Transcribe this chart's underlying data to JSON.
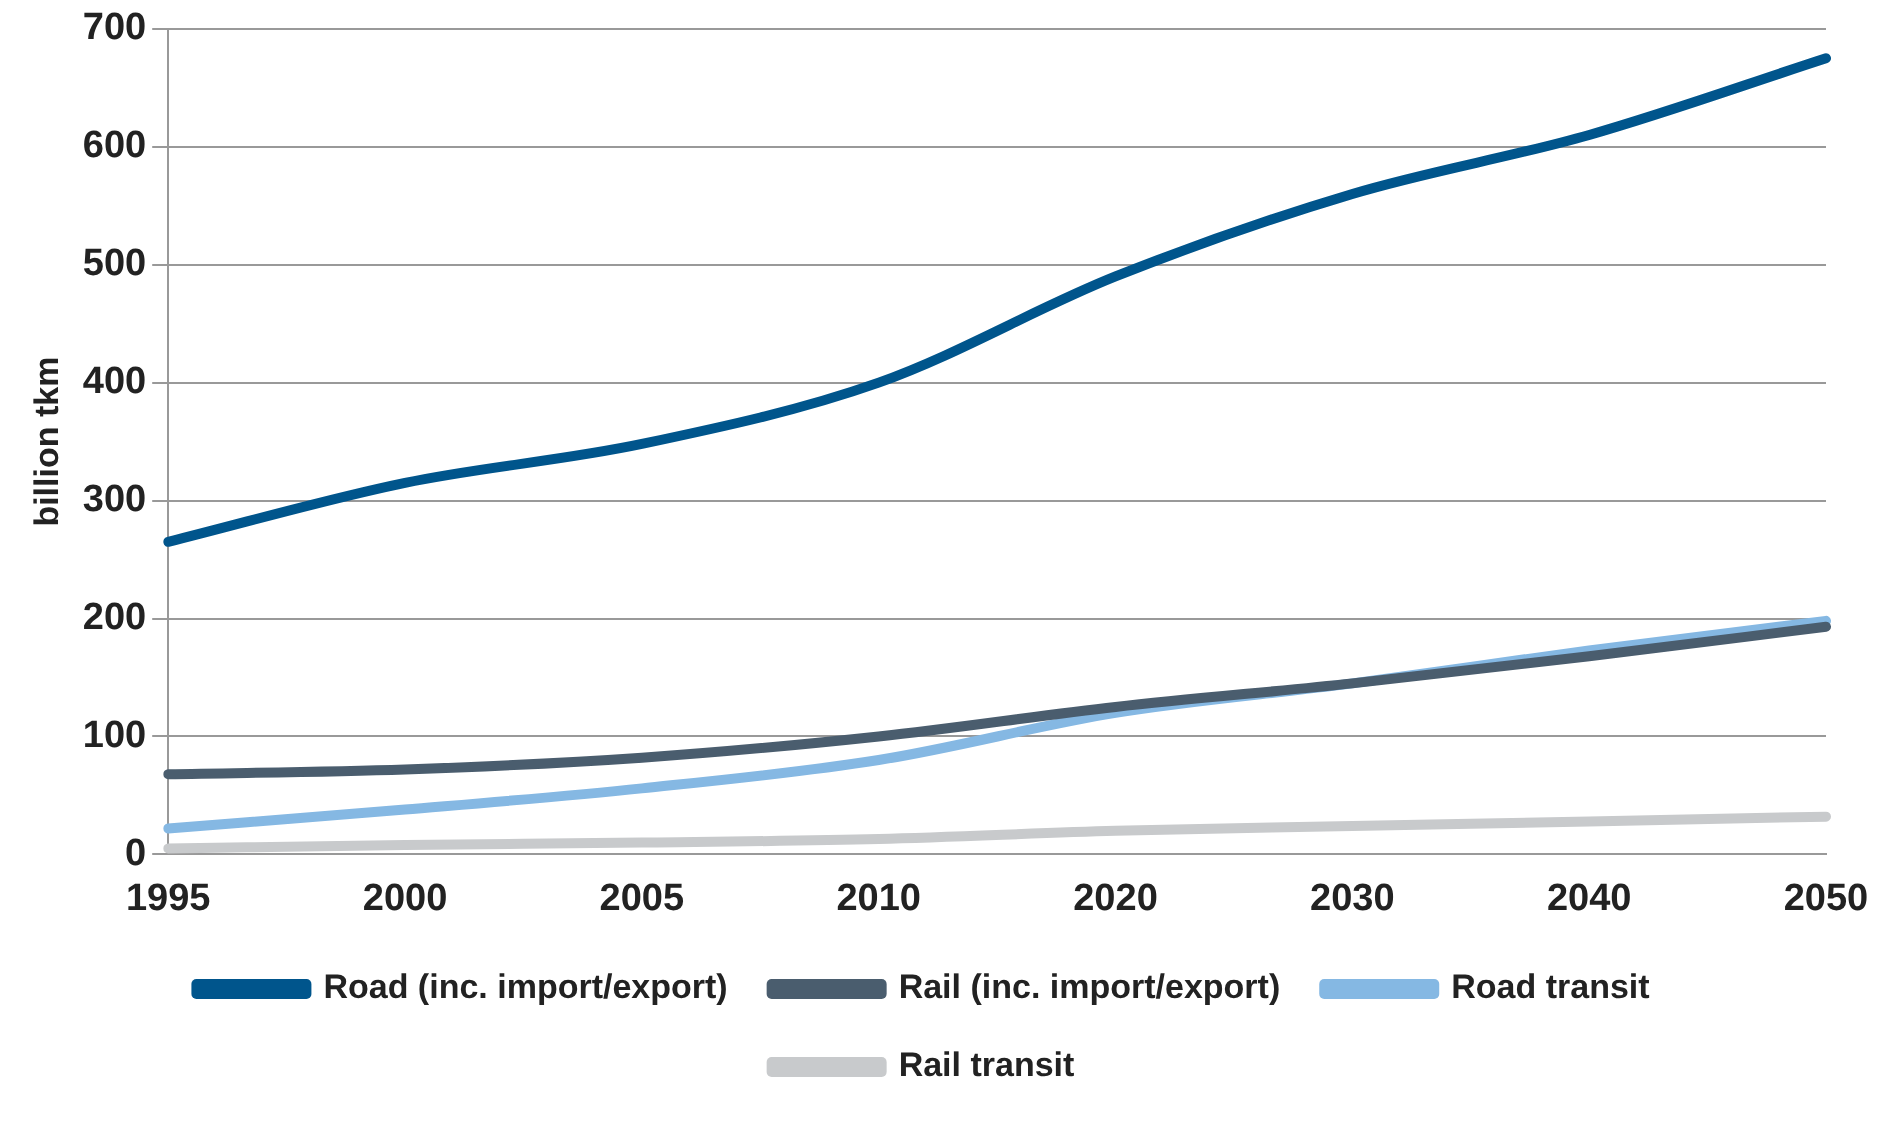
{
  "chart_data": {
    "type": "line",
    "ylabel": "billion tkm",
    "categories": [
      "1995",
      "2000",
      "2005",
      "2010",
      "2020",
      "2030",
      "2040",
      "2050"
    ],
    "ylim": [
      0,
      700
    ],
    "yticks": [
      0,
      100,
      200,
      300,
      400,
      500,
      600,
      700
    ],
    "grid": "y",
    "legend": "bottom",
    "marker": "none",
    "line_style": "solid",
    "series": [
      {
        "name": "Road (inc. import/export)",
        "color": "#00558c",
        "values": [
          265,
          315,
          348,
          400,
          490,
          560,
          610,
          675
        ]
      },
      {
        "name": "Rail (inc. import/export)",
        "color": "#4a5d6e",
        "values": [
          68,
          72,
          82,
          100,
          125,
          145,
          168,
          193
        ]
      },
      {
        "name": "Road transit",
        "color": "#85b8e3",
        "values": [
          22,
          38,
          56,
          80,
          120,
          145,
          173,
          198
        ]
      },
      {
        "name": "Rail transit",
        "color": "#c8cacc",
        "values": [
          5,
          8,
          10,
          13,
          20,
          24,
          28,
          32
        ]
      }
    ]
  }
}
